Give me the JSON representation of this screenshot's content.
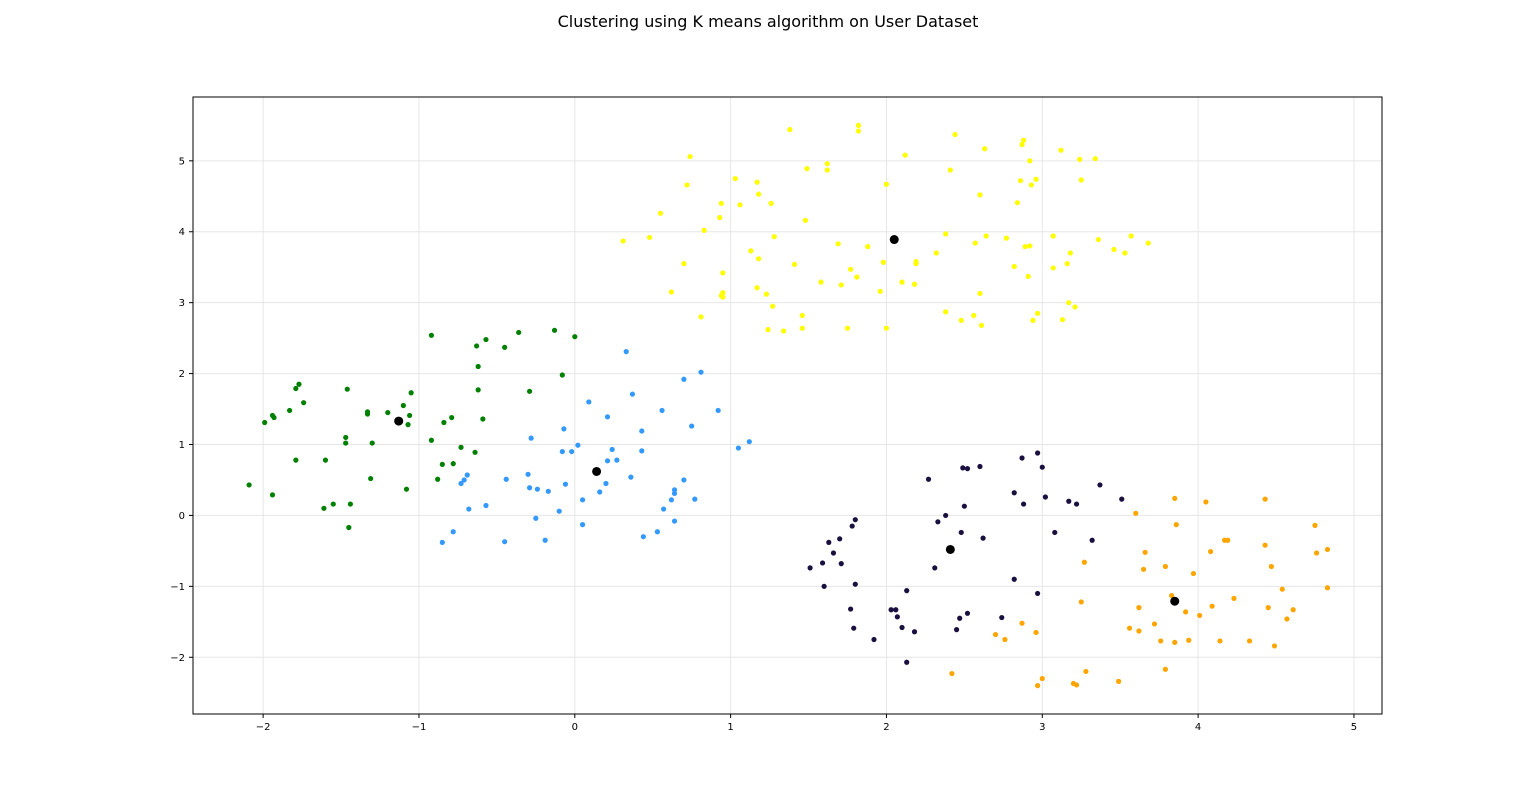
{
  "chart_data": {
    "type": "scatter",
    "title": "Clustering using K means algorithm on User Dataset",
    "xlabel": "",
    "ylabel": "",
    "xlim": [
      -2.45,
      5.18
    ],
    "ylim": [
      -2.8,
      5.9
    ],
    "xticks": [
      -2,
      -1,
      0,
      1,
      2,
      3,
      4,
      5
    ],
    "yticks": [
      -2,
      -1,
      0,
      1,
      2,
      3,
      4,
      5
    ],
    "grid": true,
    "series": [
      {
        "color": "#ffff00",
        "points": [
          [
            1.38,
            5.44
          ],
          [
            1.82,
            5.5
          ],
          [
            1.82,
            5.42
          ],
          [
            2.44,
            5.37
          ],
          [
            2.88,
            5.29
          ],
          [
            2.87,
            5.23
          ],
          [
            3.12,
            5.15
          ],
          [
            2.63,
            5.17
          ],
          [
            2.12,
            5.08
          ],
          [
            0.74,
            5.06
          ],
          [
            2.92,
            5.0
          ],
          [
            3.24,
            5.02
          ],
          [
            3.34,
            5.03
          ],
          [
            1.62,
            4.96
          ],
          [
            1.62,
            4.87
          ],
          [
            1.49,
            4.89
          ],
          [
            2.41,
            4.87
          ],
          [
            2.93,
            4.66
          ],
          [
            2.96,
            4.74
          ],
          [
            2.86,
            4.72
          ],
          [
            3.25,
            4.73
          ],
          [
            0.72,
            4.66
          ],
          [
            2.0,
            4.67
          ],
          [
            1.03,
            4.75
          ],
          [
            1.17,
            4.7
          ],
          [
            1.18,
            4.53
          ],
          [
            2.6,
            4.52
          ],
          [
            2.84,
            4.41
          ],
          [
            0.94,
            4.4
          ],
          [
            1.06,
            4.38
          ],
          [
            1.26,
            4.4
          ],
          [
            0.55,
            4.26
          ],
          [
            0.93,
            4.2
          ],
          [
            1.48,
            4.16
          ],
          [
            0.83,
            4.02
          ],
          [
            0.31,
            3.87
          ],
          [
            0.48,
            3.92
          ],
          [
            2.38,
            3.97
          ],
          [
            2.64,
            3.94
          ],
          [
            2.77,
            3.91
          ],
          [
            3.07,
            3.94
          ],
          [
            3.36,
            3.89
          ],
          [
            3.57,
            3.94
          ],
          [
            3.68,
            3.84
          ],
          [
            1.28,
            3.93
          ],
          [
            1.69,
            3.83
          ],
          [
            2.57,
            3.84
          ],
          [
            2.89,
            3.79
          ],
          [
            2.92,
            3.8
          ],
          [
            1.13,
            3.73
          ],
          [
            1.88,
            3.79
          ],
          [
            3.46,
            3.75
          ],
          [
            3.18,
            3.7
          ],
          [
            3.53,
            3.7
          ],
          [
            2.32,
            3.7
          ],
          [
            1.98,
            3.57
          ],
          [
            2.19,
            3.55
          ],
          [
            2.19,
            3.58
          ],
          [
            1.18,
            3.62
          ],
          [
            0.7,
            3.55
          ],
          [
            1.41,
            3.54
          ],
          [
            1.77,
            3.47
          ],
          [
            2.82,
            3.51
          ],
          [
            3.07,
            3.49
          ],
          [
            3.16,
            3.55
          ],
          [
            0.95,
            3.42
          ],
          [
            1.81,
            3.36
          ],
          [
            2.91,
            3.37
          ],
          [
            1.58,
            3.29
          ],
          [
            1.71,
            3.25
          ],
          [
            2.1,
            3.29
          ],
          [
            2.18,
            3.26
          ],
          [
            1.17,
            3.21
          ],
          [
            0.62,
            3.15
          ],
          [
            0.95,
            3.14
          ],
          [
            1.23,
            3.12
          ],
          [
            1.96,
            3.16
          ],
          [
            2.6,
            3.13
          ],
          [
            0.95,
            3.08
          ],
          [
            0.94,
            3.1
          ],
          [
            1.27,
            2.95
          ],
          [
            2.38,
            2.87
          ],
          [
            2.56,
            2.82
          ],
          [
            2.97,
            2.85
          ],
          [
            3.17,
            3.0
          ],
          [
            3.21,
            2.94
          ],
          [
            0.81,
            2.8
          ],
          [
            1.46,
            2.82
          ],
          [
            2.48,
            2.75
          ],
          [
            2.94,
            2.75
          ],
          [
            3.13,
            2.76
          ],
          [
            1.24,
            2.62
          ],
          [
            1.34,
            2.6
          ],
          [
            1.46,
            2.64
          ],
          [
            1.75,
            2.64
          ],
          [
            2.0,
            2.64
          ],
          [
            2.61,
            2.68
          ]
        ]
      },
      {
        "color": "#008000",
        "points": [
          [
            -0.13,
            2.61
          ],
          [
            -0.92,
            2.54
          ],
          [
            -0.36,
            2.58
          ],
          [
            0.0,
            2.52
          ],
          [
            -0.57,
            2.48
          ],
          [
            -0.63,
            2.39
          ],
          [
            -0.45,
            2.37
          ],
          [
            -0.62,
            2.1
          ],
          [
            -0.08,
            1.98
          ],
          [
            -1.77,
            1.85
          ],
          [
            -1.79,
            1.79
          ],
          [
            -1.46,
            1.78
          ],
          [
            -0.62,
            1.77
          ],
          [
            -0.29,
            1.75
          ],
          [
            -1.05,
            1.73
          ],
          [
            -1.74,
            1.59
          ],
          [
            -1.83,
            1.48
          ],
          [
            -1.1,
            1.55
          ],
          [
            -1.33,
            1.46
          ],
          [
            -1.33,
            1.43
          ],
          [
            -1.2,
            1.45
          ],
          [
            -1.94,
            1.41
          ],
          [
            -1.93,
            1.38
          ],
          [
            -1.06,
            1.41
          ],
          [
            -0.79,
            1.38
          ],
          [
            -0.59,
            1.36
          ],
          [
            -1.99,
            1.31
          ],
          [
            -0.84,
            1.31
          ],
          [
            -1.07,
            1.28
          ],
          [
            -1.47,
            1.1
          ],
          [
            -0.92,
            1.06
          ],
          [
            -1.47,
            1.02
          ],
          [
            -1.3,
            1.02
          ],
          [
            -0.73,
            0.96
          ],
          [
            -0.64,
            0.89
          ],
          [
            -1.79,
            0.78
          ],
          [
            -1.6,
            0.78
          ],
          [
            -0.85,
            0.72
          ],
          [
            -0.78,
            0.73
          ],
          [
            -1.31,
            0.52
          ],
          [
            -0.88,
            0.51
          ],
          [
            -2.09,
            0.43
          ],
          [
            -1.08,
            0.37
          ],
          [
            -1.94,
            0.29
          ],
          [
            -1.55,
            0.16
          ],
          [
            -1.44,
            0.16
          ],
          [
            -1.61,
            0.1
          ],
          [
            -1.45,
            -0.17
          ]
        ]
      },
      {
        "color": "#3399ff",
        "points": [
          [
            0.33,
            2.31
          ],
          [
            0.81,
            2.02
          ],
          [
            0.7,
            1.92
          ],
          [
            0.37,
            1.71
          ],
          [
            0.09,
            1.6
          ],
          [
            0.56,
            1.48
          ],
          [
            0.92,
            1.48
          ],
          [
            0.21,
            1.39
          ],
          [
            0.75,
            1.26
          ],
          [
            -0.07,
            1.22
          ],
          [
            0.43,
            1.19
          ],
          [
            1.12,
            1.04
          ],
          [
            -0.28,
            1.09
          ],
          [
            0.02,
            0.99
          ],
          [
            1.05,
            0.95
          ],
          [
            -0.08,
            0.9
          ],
          [
            -0.02,
            0.9
          ],
          [
            0.24,
            0.93
          ],
          [
            0.43,
            0.91
          ],
          [
            0.21,
            0.77
          ],
          [
            0.27,
            0.78
          ],
          [
            -0.3,
            0.58
          ],
          [
            -0.69,
            0.57
          ],
          [
            0.36,
            0.54
          ],
          [
            -0.71,
            0.5
          ],
          [
            -0.44,
            0.51
          ],
          [
            0.7,
            0.5
          ],
          [
            0.2,
            0.45
          ],
          [
            -0.73,
            0.45
          ],
          [
            -0.06,
            0.44
          ],
          [
            -0.29,
            0.39
          ],
          [
            -0.24,
            0.37
          ],
          [
            -0.17,
            0.34
          ],
          [
            0.16,
            0.33
          ],
          [
            0.64,
            0.36
          ],
          [
            0.64,
            0.31
          ],
          [
            0.62,
            0.22
          ],
          [
            0.77,
            0.23
          ],
          [
            0.05,
            0.22
          ],
          [
            -0.57,
            0.14
          ],
          [
            0.57,
            0.09
          ],
          [
            -0.68,
            0.09
          ],
          [
            -0.1,
            0.06
          ],
          [
            -0.25,
            -0.04
          ],
          [
            0.64,
            -0.08
          ],
          [
            0.05,
            -0.13
          ],
          [
            0.53,
            -0.23
          ],
          [
            -0.78,
            -0.23
          ],
          [
            0.44,
            -0.3
          ],
          [
            -0.19,
            -0.35
          ],
          [
            -0.45,
            -0.37
          ],
          [
            -0.85,
            -0.38
          ]
        ]
      },
      {
        "color": "#1a1040",
        "points": [
          [
            2.97,
            0.88
          ],
          [
            2.87,
            0.81
          ],
          [
            2.49,
            0.67
          ],
          [
            3.0,
            0.68
          ],
          [
            2.52,
            0.66
          ],
          [
            2.6,
            0.69
          ],
          [
            2.27,
            0.51
          ],
          [
            3.37,
            0.43
          ],
          [
            2.82,
            0.32
          ],
          [
            3.02,
            0.26
          ],
          [
            3.51,
            0.23
          ],
          [
            3.17,
            0.2
          ],
          [
            3.22,
            0.16
          ],
          [
            2.88,
            0.16
          ],
          [
            2.5,
            0.13
          ],
          [
            2.38,
            0.0
          ],
          [
            1.8,
            -0.06
          ],
          [
            2.33,
            -0.09
          ],
          [
            1.78,
            -0.15
          ],
          [
            3.08,
            -0.24
          ],
          [
            2.48,
            -0.24
          ],
          [
            2.62,
            -0.32
          ],
          [
            1.7,
            -0.33
          ],
          [
            3.32,
            -0.35
          ],
          [
            1.63,
            -0.38
          ],
          [
            1.66,
            -0.53
          ],
          [
            1.59,
            -0.67
          ],
          [
            1.71,
            -0.68
          ],
          [
            1.51,
            -0.74
          ],
          [
            2.31,
            -0.74
          ],
          [
            2.82,
            -0.9
          ],
          [
            1.6,
            -1.0
          ],
          [
            1.8,
            -0.97
          ],
          [
            2.13,
            -1.06
          ],
          [
            2.97,
            -1.1
          ],
          [
            1.77,
            -1.32
          ],
          [
            2.03,
            -1.33
          ],
          [
            2.06,
            -1.33
          ],
          [
            2.52,
            -1.38
          ],
          [
            2.07,
            -1.43
          ],
          [
            2.47,
            -1.45
          ],
          [
            2.74,
            -1.44
          ],
          [
            1.79,
            -1.59
          ],
          [
            2.1,
            -1.58
          ],
          [
            2.18,
            -1.64
          ],
          [
            2.45,
            -1.61
          ],
          [
            1.92,
            -1.75
          ],
          [
            2.13,
            -2.07
          ]
        ]
      },
      {
        "color": "#ffa500",
        "points": [
          [
            3.85,
            0.24
          ],
          [
            4.43,
            0.23
          ],
          [
            4.05,
            0.19
          ],
          [
            3.6,
            0.03
          ],
          [
            3.86,
            -0.13
          ],
          [
            4.75,
            -0.14
          ],
          [
            4.17,
            -0.35
          ],
          [
            4.19,
            -0.35
          ],
          [
            4.43,
            -0.42
          ],
          [
            4.83,
            -0.48
          ],
          [
            3.66,
            -0.52
          ],
          [
            4.08,
            -0.51
          ],
          [
            4.76,
            -0.53
          ],
          [
            3.27,
            -0.66
          ],
          [
            3.65,
            -0.76
          ],
          [
            3.79,
            -0.72
          ],
          [
            4.47,
            -0.72
          ],
          [
            3.97,
            -0.82
          ],
          [
            4.83,
            -1.02
          ],
          [
            4.54,
            -1.04
          ],
          [
            3.83,
            -1.13
          ],
          [
            4.23,
            -1.17
          ],
          [
            3.25,
            -1.22
          ],
          [
            4.09,
            -1.28
          ],
          [
            4.45,
            -1.3
          ],
          [
            3.62,
            -1.3
          ],
          [
            4.61,
            -1.33
          ],
          [
            3.92,
            -1.36
          ],
          [
            4.01,
            -1.41
          ],
          [
            4.57,
            -1.46
          ],
          [
            3.72,
            -1.53
          ],
          [
            2.87,
            -1.52
          ],
          [
            3.56,
            -1.59
          ],
          [
            3.62,
            -1.63
          ],
          [
            2.96,
            -1.65
          ],
          [
            2.7,
            -1.68
          ],
          [
            3.76,
            -1.77
          ],
          [
            4.14,
            -1.77
          ],
          [
            4.33,
            -1.77
          ],
          [
            2.76,
            -1.75
          ],
          [
            3.85,
            -1.79
          ],
          [
            3.94,
            -1.76
          ],
          [
            4.49,
            -1.84
          ],
          [
            3.79,
            -2.17
          ],
          [
            2.42,
            -2.23
          ],
          [
            3.28,
            -2.2
          ],
          [
            3.0,
            -2.3
          ],
          [
            3.49,
            -2.34
          ],
          [
            3.2,
            -2.37
          ],
          [
            3.22,
            -2.39
          ],
          [
            2.97,
            -2.4
          ]
        ]
      },
      {
        "color": "#000000",
        "role": "centroid",
        "points": [
          [
            2.05,
            3.89
          ],
          [
            -1.13,
            1.33
          ],
          [
            0.14,
            0.62
          ],
          [
            2.41,
            -0.48
          ],
          [
            3.85,
            -1.21
          ]
        ]
      }
    ]
  }
}
